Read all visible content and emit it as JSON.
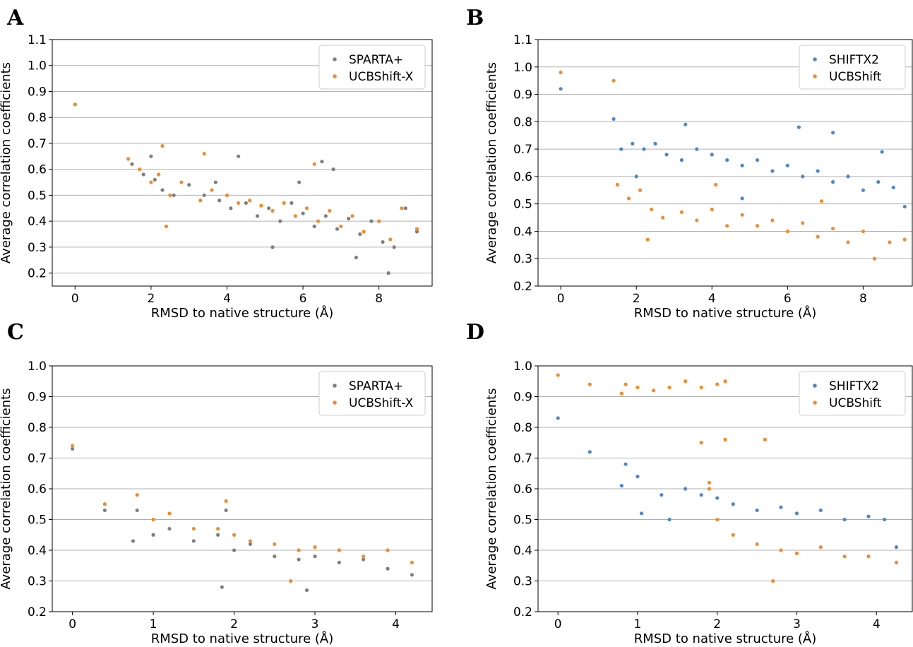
{
  "chart_data": [
    {
      "panel": "A",
      "type": "scatter",
      "title": "",
      "xlabel": "RMSD to native structure (Å)",
      "ylabel": "Average correlation coefficients",
      "xlim": [
        -0.6,
        9.4
      ],
      "ylim": [
        0.15,
        1.1
      ],
      "xticks": [
        "0",
        "2",
        "4",
        "6",
        "8"
      ],
      "xtick_values": [
        0,
        2,
        4,
        6,
        8
      ],
      "yticks": [
        "0.2",
        "0.3",
        "0.4",
        "0.5",
        "0.6",
        "0.7",
        "0.8",
        "0.9",
        "1.0",
        "1.1"
      ],
      "ytick_values": [
        0.2,
        0.3,
        0.4,
        0.5,
        0.6,
        0.7,
        0.8,
        0.9,
        1.0,
        1.1
      ],
      "grid": "horizontal",
      "legend": "top-right",
      "series": [
        {
          "name": "SPARTA+",
          "color": "#7f7f7f",
          "points": [
            [
              0,
              0.85
            ],
            [
              1.5,
              0.62
            ],
            [
              1.8,
              0.58
            ],
            [
              2.1,
              0.56
            ],
            [
              2.3,
              0.52
            ],
            [
              2.6,
              0.5
            ],
            [
              3.0,
              0.54
            ],
            [
              3.4,
              0.5
            ],
            [
              3.8,
              0.48
            ],
            [
              4.1,
              0.45
            ],
            [
              4.5,
              0.47
            ],
            [
              4.8,
              0.42
            ],
            [
              5.1,
              0.45
            ],
            [
              5.4,
              0.4
            ],
            [
              5.7,
              0.47
            ],
            [
              6.0,
              0.43
            ],
            [
              6.3,
              0.38
            ],
            [
              6.6,
              0.42
            ],
            [
              6.9,
              0.37
            ],
            [
              7.2,
              0.41
            ],
            [
              7.5,
              0.35
            ],
            [
              7.8,
              0.4
            ],
            [
              8.1,
              0.32
            ],
            [
              8.4,
              0.3
            ],
            [
              8.7,
              0.45
            ],
            [
              9.0,
              0.36
            ],
            [
              8.25,
              0.2
            ],
            [
              7.4,
              0.26
            ],
            [
              4.3,
              0.65
            ],
            [
              6.5,
              0.63
            ],
            [
              5.2,
              0.3
            ],
            [
              3.7,
              0.55
            ],
            [
              2.0,
              0.65
            ],
            [
              5.9,
              0.55
            ],
            [
              6.8,
              0.6
            ]
          ]
        },
        {
          "name": "UCBShift-X",
          "color": "#f58a2a",
          "points": [
            [
              0,
              0.85
            ],
            [
              1.4,
              0.64
            ],
            [
              1.7,
              0.6
            ],
            [
              2.0,
              0.55
            ],
            [
              2.2,
              0.58
            ],
            [
              2.5,
              0.5
            ],
            [
              2.8,
              0.55
            ],
            [
              3.3,
              0.48
            ],
            [
              3.6,
              0.52
            ],
            [
              4.0,
              0.5
            ],
            [
              4.3,
              0.47
            ],
            [
              4.6,
              0.48
            ],
            [
              4.9,
              0.46
            ],
            [
              5.2,
              0.44
            ],
            [
              5.5,
              0.47
            ],
            [
              5.8,
              0.42
            ],
            [
              6.1,
              0.45
            ],
            [
              6.4,
              0.4
            ],
            [
              6.7,
              0.44
            ],
            [
              7.0,
              0.38
            ],
            [
              7.3,
              0.42
            ],
            [
              7.6,
              0.36
            ],
            [
              8.0,
              0.4
            ],
            [
              8.3,
              0.33
            ],
            [
              8.6,
              0.45
            ],
            [
              9.0,
              0.37
            ],
            [
              2.3,
              0.69
            ],
            [
              3.4,
              0.66
            ],
            [
              6.3,
              0.62
            ],
            [
              2.4,
              0.38
            ]
          ]
        }
      ]
    },
    {
      "panel": "B",
      "type": "scatter",
      "title": "",
      "xlabel": "RMSD to native structure (Å)",
      "ylabel": "Average correlation coefficients",
      "xlim": [
        -0.6,
        9.3
      ],
      "ylim": [
        0.2,
        1.1
      ],
      "xticks": [
        "0",
        "2",
        "4",
        "6",
        "8"
      ],
      "xtick_values": [
        0,
        2,
        4,
        6,
        8
      ],
      "yticks": [
        "0.2",
        "0.3",
        "0.4",
        "0.5",
        "0.6",
        "0.7",
        "0.8",
        "0.9",
        "1.0",
        "1.1"
      ],
      "ytick_values": [
        0.2,
        0.3,
        0.4,
        0.5,
        0.6,
        0.7,
        0.8,
        0.9,
        1.0,
        1.1
      ],
      "grid": "horizontal",
      "legend": "top-right",
      "series": [
        {
          "name": "SHIFTX2",
          "color": "#4e87c9",
          "points": [
            [
              0,
              0.92
            ],
            [
              1.4,
              0.81
            ],
            [
              1.6,
              0.7
            ],
            [
              1.9,
              0.72
            ],
            [
              2.2,
              0.7
            ],
            [
              2.5,
              0.72
            ],
            [
              2.8,
              0.68
            ],
            [
              3.2,
              0.66
            ],
            [
              3.6,
              0.7
            ],
            [
              4.0,
              0.68
            ],
            [
              4.4,
              0.66
            ],
            [
              4.8,
              0.64
            ],
            [
              5.2,
              0.66
            ],
            [
              5.6,
              0.62
            ],
            [
              6.0,
              0.64
            ],
            [
              6.4,
              0.6
            ],
            [
              6.8,
              0.62
            ],
            [
              7.2,
              0.58
            ],
            [
              7.6,
              0.6
            ],
            [
              8.0,
              0.55
            ],
            [
              8.4,
              0.58
            ],
            [
              8.8,
              0.56
            ],
            [
              9.1,
              0.49
            ],
            [
              3.3,
              0.79
            ],
            [
              6.3,
              0.78
            ],
            [
              7.2,
              0.76
            ],
            [
              8.5,
              0.69
            ],
            [
              4.8,
              0.52
            ],
            [
              2.0,
              0.6
            ]
          ]
        },
        {
          "name": "UCBShift",
          "color": "#f58a2a",
          "points": [
            [
              0,
              0.98
            ],
            [
              1.4,
              0.95
            ],
            [
              1.5,
              0.57
            ],
            [
              1.8,
              0.52
            ],
            [
              2.1,
              0.55
            ],
            [
              2.4,
              0.48
            ],
            [
              2.7,
              0.45
            ],
            [
              3.2,
              0.47
            ],
            [
              3.6,
              0.44
            ],
            [
              4.0,
              0.48
            ],
            [
              4.4,
              0.42
            ],
            [
              4.8,
              0.46
            ],
            [
              5.2,
              0.42
            ],
            [
              5.6,
              0.44
            ],
            [
              6.0,
              0.4
            ],
            [
              6.4,
              0.43
            ],
            [
              6.8,
              0.38
            ],
            [
              7.2,
              0.41
            ],
            [
              7.6,
              0.36
            ],
            [
              8.0,
              0.4
            ],
            [
              8.3,
              0.3
            ],
            [
              8.7,
              0.36
            ],
            [
              9.1,
              0.37
            ],
            [
              2.3,
              0.37
            ],
            [
              4.1,
              0.57
            ],
            [
              6.9,
              0.51
            ]
          ]
        }
      ]
    },
    {
      "panel": "C",
      "type": "scatter",
      "title": "",
      "xlabel": "RMSD to native structure (Å)",
      "ylabel": "Average correlation coefficients",
      "xlim": [
        -0.25,
        4.45
      ],
      "ylim": [
        0.2,
        1.0
      ],
      "xticks": [
        "0",
        "1",
        "2",
        "3",
        "4"
      ],
      "xtick_values": [
        0,
        1,
        2,
        3,
        4
      ],
      "yticks": [
        "0.2",
        "0.3",
        "0.4",
        "0.5",
        "0.6",
        "0.7",
        "0.8",
        "0.9",
        "1.0"
      ],
      "ytick_values": [
        0.2,
        0.3,
        0.4,
        0.5,
        0.6,
        0.7,
        0.8,
        0.9,
        1.0
      ],
      "grid": "horizontal",
      "legend": "top-right",
      "series": [
        {
          "name": "SPARTA+",
          "color": "#7f7f7f",
          "points": [
            [
              0,
              0.73
            ],
            [
              0.4,
              0.53
            ],
            [
              0.8,
              0.53
            ],
            [
              1.0,
              0.45
            ],
            [
              1.2,
              0.47
            ],
            [
              1.5,
              0.43
            ],
            [
              1.8,
              0.45
            ],
            [
              2.0,
              0.4
            ],
            [
              2.2,
              0.42
            ],
            [
              2.5,
              0.38
            ],
            [
              2.8,
              0.37
            ],
            [
              3.0,
              0.38
            ],
            [
              3.3,
              0.36
            ],
            [
              3.6,
              0.37
            ],
            [
              3.9,
              0.34
            ],
            [
              4.2,
              0.32
            ],
            [
              1.85,
              0.28
            ],
            [
              2.9,
              0.27
            ],
            [
              0.75,
              0.43
            ],
            [
              1.9,
              0.53
            ]
          ]
        },
        {
          "name": "UCBShift-X",
          "color": "#f58a2a",
          "points": [
            [
              0,
              0.74
            ],
            [
              0.4,
              0.55
            ],
            [
              0.8,
              0.58
            ],
            [
              1.0,
              0.5
            ],
            [
              1.2,
              0.52
            ],
            [
              1.5,
              0.47
            ],
            [
              1.8,
              0.47
            ],
            [
              2.0,
              0.45
            ],
            [
              2.2,
              0.43
            ],
            [
              2.5,
              0.42
            ],
            [
              2.8,
              0.4
            ],
            [
              3.0,
              0.41
            ],
            [
              3.3,
              0.4
            ],
            [
              3.6,
              0.38
            ],
            [
              3.9,
              0.4
            ],
            [
              4.2,
              0.36
            ],
            [
              1.9,
              0.56
            ],
            [
              2.7,
              0.3
            ]
          ]
        }
      ]
    },
    {
      "panel": "D",
      "type": "scatter",
      "title": "",
      "xlabel": "RMSD to native structure (Å)",
      "ylabel": "Average correlation coefficients",
      "xlim": [
        -0.25,
        4.45
      ],
      "ylim": [
        0.2,
        1.0
      ],
      "xticks": [
        "0",
        "1",
        "2",
        "3",
        "4"
      ],
      "xtick_values": [
        0,
        1,
        2,
        3,
        4
      ],
      "yticks": [
        "0.2",
        "0.3",
        "0.4",
        "0.5",
        "0.6",
        "0.7",
        "0.8",
        "0.9",
        "1.0"
      ],
      "ytick_values": [
        0.2,
        0.3,
        0.4,
        0.5,
        0.6,
        0.7,
        0.8,
        0.9,
        1.0
      ],
      "grid": "horizontal",
      "legend": "top-right",
      "series": [
        {
          "name": "SHIFTX2",
          "color": "#4e87c9",
          "points": [
            [
              0,
              0.83
            ],
            [
              0.4,
              0.72
            ],
            [
              0.8,
              0.61
            ],
            [
              0.85,
              0.68
            ],
            [
              1.0,
              0.64
            ],
            [
              1.05,
              0.52
            ],
            [
              1.3,
              0.58
            ],
            [
              1.6,
              0.6
            ],
            [
              1.8,
              0.58
            ],
            [
              2.0,
              0.57
            ],
            [
              2.2,
              0.55
            ],
            [
              2.5,
              0.53
            ],
            [
              2.8,
              0.54
            ],
            [
              3.0,
              0.52
            ],
            [
              3.3,
              0.53
            ],
            [
              3.6,
              0.5
            ],
            [
              3.9,
              0.51
            ],
            [
              4.1,
              0.5
            ],
            [
              4.25,
              0.41
            ],
            [
              1.4,
              0.5
            ]
          ]
        },
        {
          "name": "UCBShift",
          "color": "#f58a2a",
          "points": [
            [
              0,
              0.97
            ],
            [
              0.4,
              0.94
            ],
            [
              0.8,
              0.91
            ],
            [
              0.85,
              0.94
            ],
            [
              1.0,
              0.93
            ],
            [
              1.2,
              0.92
            ],
            [
              1.4,
              0.93
            ],
            [
              1.6,
              0.95
            ],
            [
              1.8,
              0.93
            ],
            [
              2.0,
              0.94
            ],
            [
              2.1,
              0.95
            ],
            [
              1.8,
              0.75
            ],
            [
              2.1,
              0.76
            ],
            [
              2.6,
              0.76
            ],
            [
              1.9,
              0.6
            ],
            [
              2.0,
              0.5
            ],
            [
              2.2,
              0.45
            ],
            [
              2.5,
              0.42
            ],
            [
              2.8,
              0.4
            ],
            [
              3.0,
              0.39
            ],
            [
              3.3,
              0.41
            ],
            [
              3.6,
              0.38
            ],
            [
              3.9,
              0.38
            ],
            [
              4.25,
              0.36
            ],
            [
              2.7,
              0.3
            ],
            [
              1.9,
              0.62
            ]
          ]
        }
      ]
    }
  ]
}
